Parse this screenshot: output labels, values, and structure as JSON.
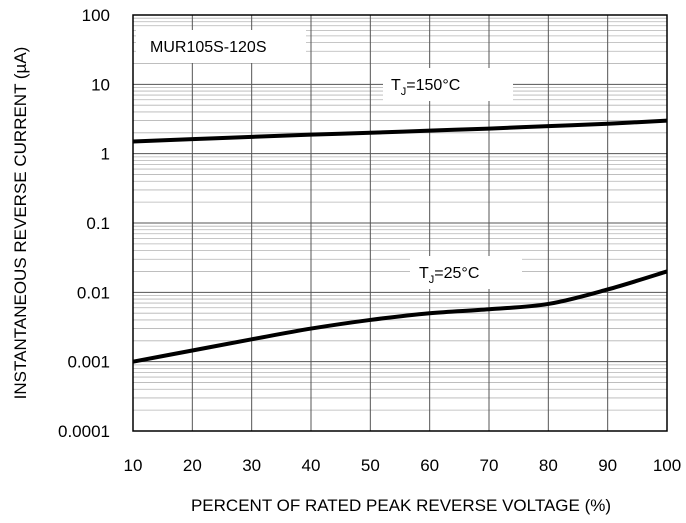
{
  "chart_data": {
    "type": "line",
    "title": "",
    "xlabel": "PERCENT OF RATED PEAK REVERSE VOLTAGE (%)",
    "ylabel": "INSTANTANEOUS REVERSE CURRENT (µA)",
    "xlim": [
      10,
      100
    ],
    "ylim": [
      0.0001,
      100
    ],
    "yscale": "log",
    "grid": true,
    "x_ticks": [
      "10",
      "20",
      "30",
      "40",
      "50",
      "60",
      "70",
      "80",
      "90",
      "100"
    ],
    "y_ticks": [
      "100",
      "10",
      "1",
      "0.1",
      "0.01",
      "0.001",
      "0.0001"
    ],
    "part_label": "MUR105S-120S",
    "series": [
      {
        "label_main": "T",
        "label_sub": "J",
        "label_rest": "=150°C",
        "x": [
          10,
          20,
          30,
          40,
          50,
          60,
          70,
          80,
          90,
          100
        ],
        "y": [
          1.5,
          1.62,
          1.75,
          1.88,
          2.0,
          2.15,
          2.3,
          2.5,
          2.7,
          3.0
        ]
      },
      {
        "label_main": "T",
        "label_sub": "J",
        "label_rest": "=25°C",
        "x": [
          10,
          20,
          30,
          40,
          50,
          60,
          70,
          80,
          90,
          100
        ],
        "y": [
          0.001,
          0.00145,
          0.0021,
          0.003,
          0.004,
          0.005,
          0.0057,
          0.0068,
          0.011,
          0.02
        ]
      }
    ]
  }
}
